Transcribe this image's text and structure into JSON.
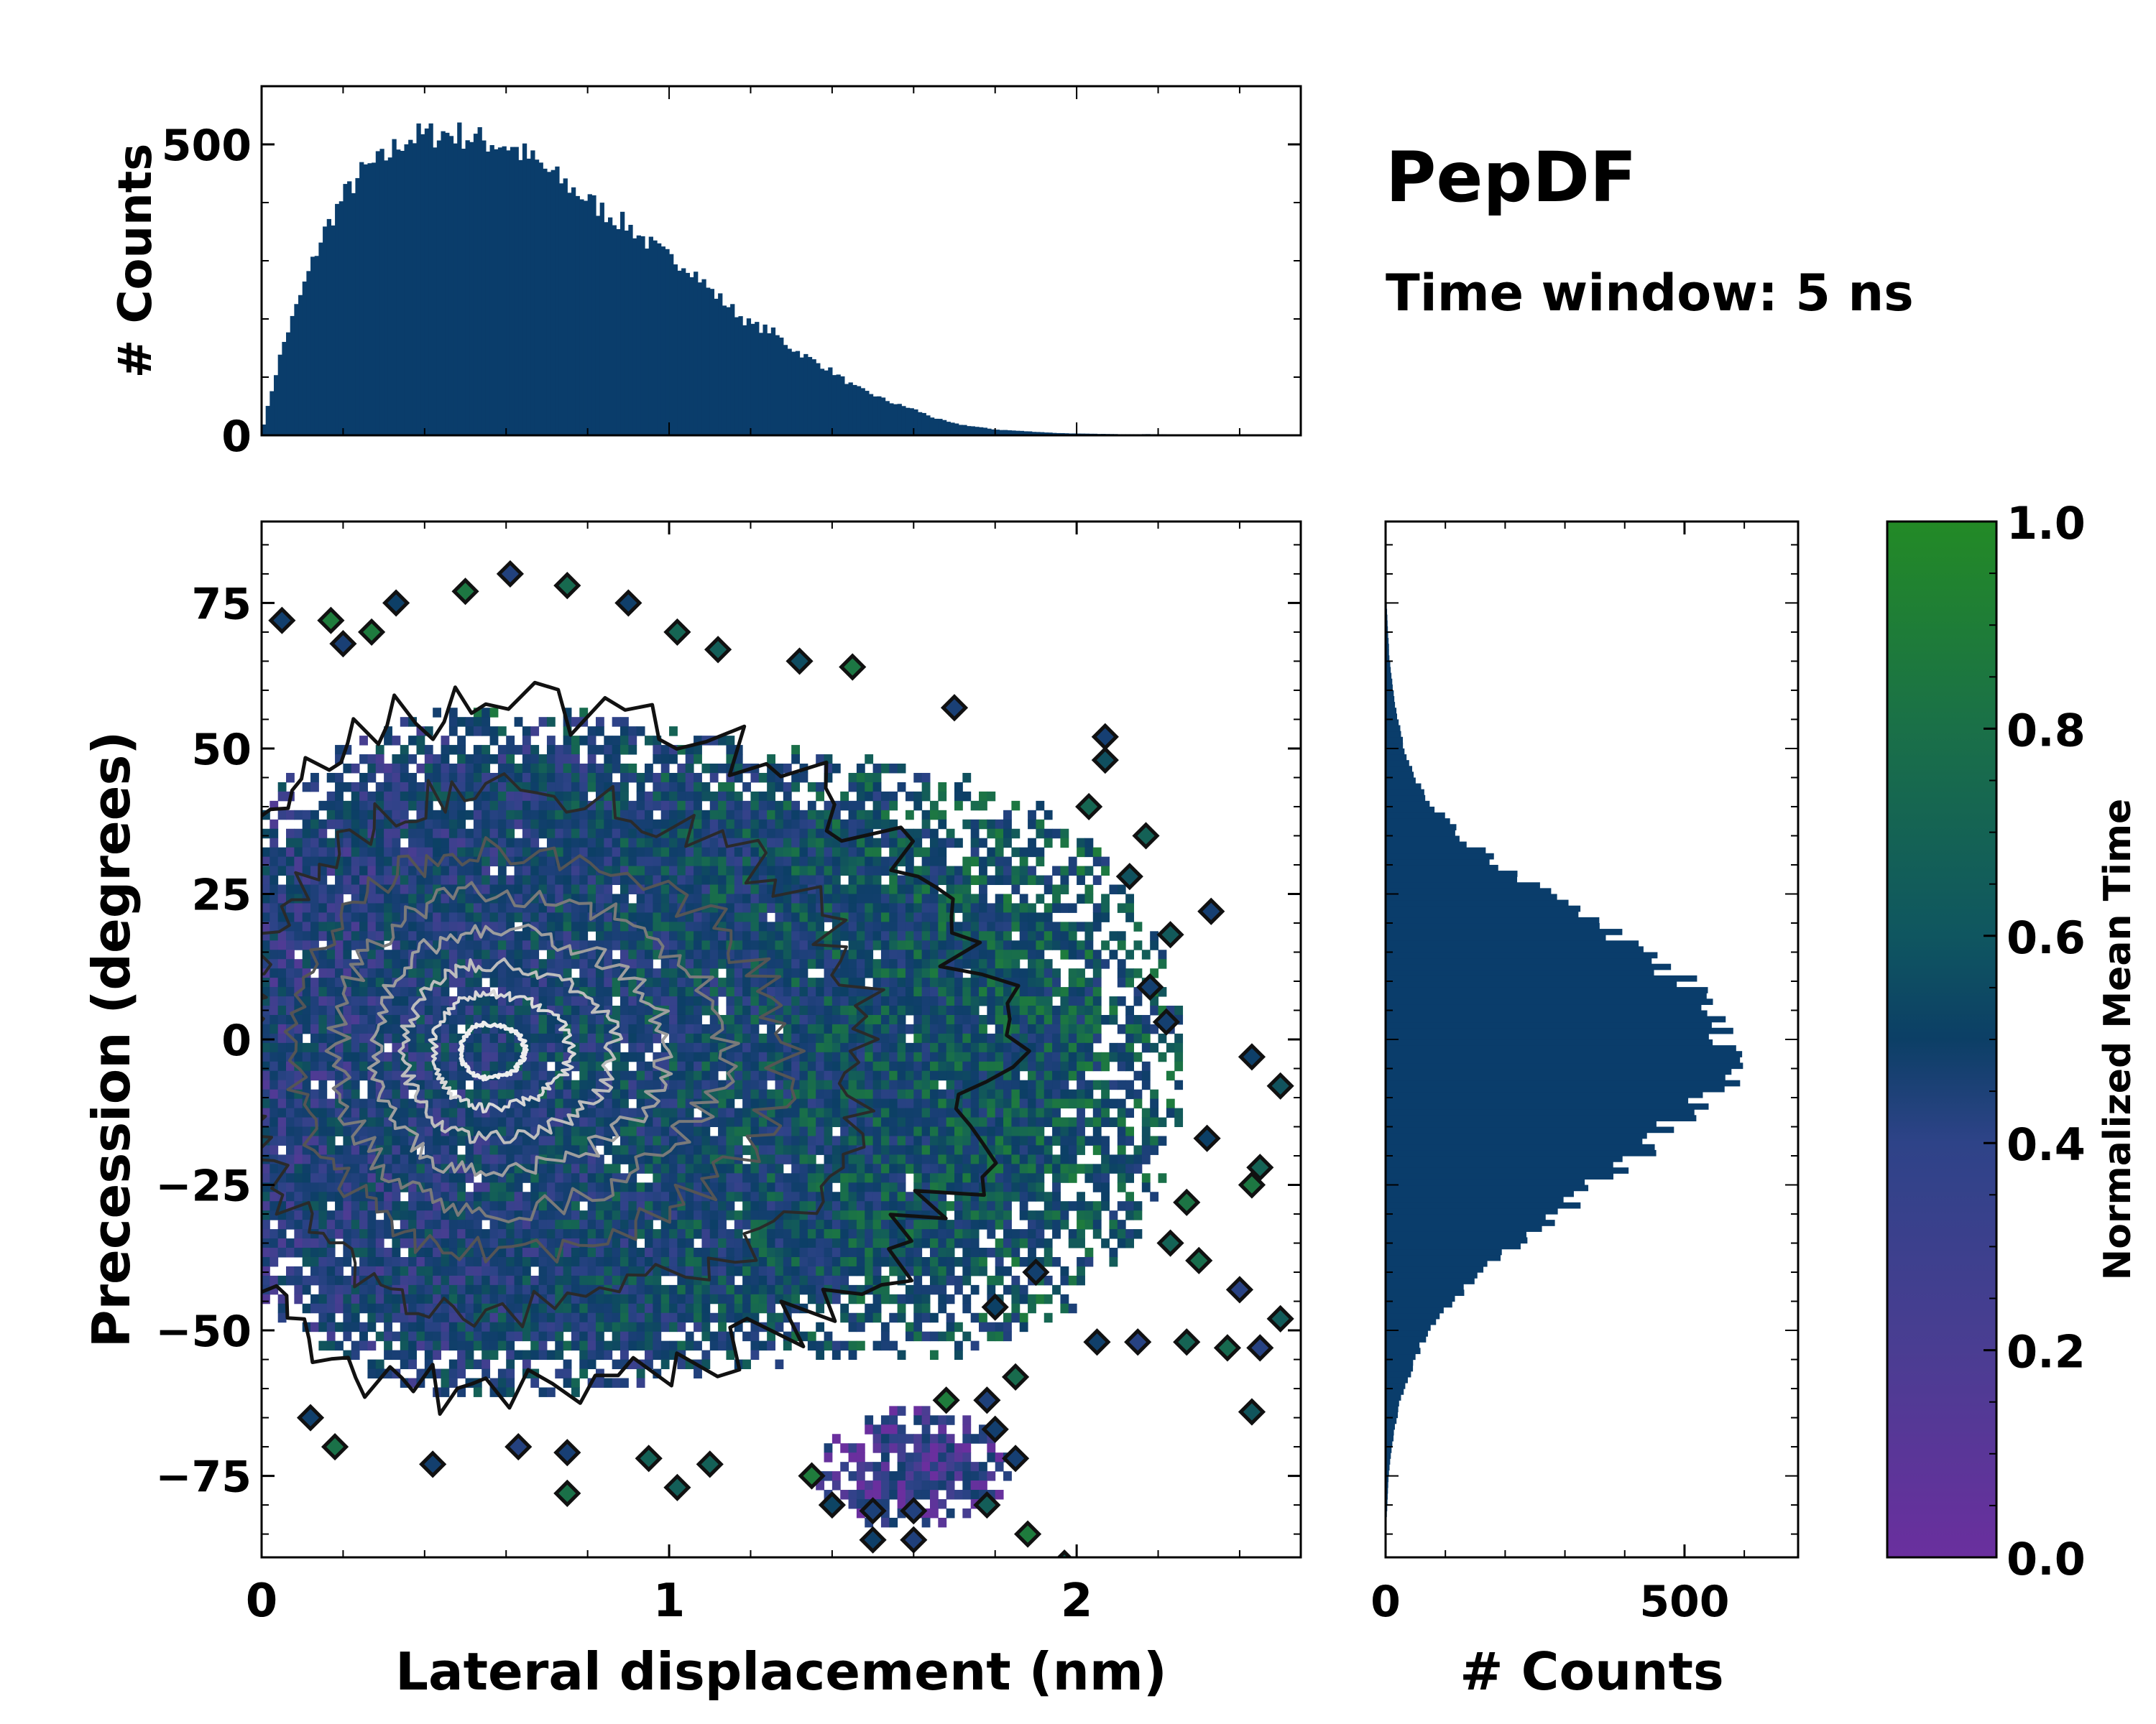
{
  "figure": {
    "title": "PepDF",
    "subtitle": "Time window: 5 ns"
  },
  "colors": {
    "bar": "#0a3d6b",
    "contour_outer": "#111111",
    "contour_inner": "#d8d8d8",
    "cmap": [
      "#6a2f9e",
      "#4a3d92",
      "#2e4388",
      "#173f73",
      "#0c3f66",
      "#146256",
      "#1e7a3f",
      "#238a26"
    ]
  },
  "chart_data": [
    {
      "id": "main",
      "type": "heatmap",
      "title": "",
      "xlabel": "Lateral displacement (nm)",
      "ylabel": "Precession (degrees)",
      "xlim": [
        0,
        2.55
      ],
      "ylim": [
        -89,
        89
      ],
      "xticks": [
        0,
        1,
        2
      ],
      "xtick_labels": [
        "0",
        "1",
        "2"
      ],
      "yticks": [
        -75,
        -50,
        -25,
        0,
        25,
        50,
        75
      ],
      "ytick_labels": [
        "−75",
        "−50",
        "−25",
        "0",
        "25",
        "50",
        "75"
      ],
      "density": {
        "center_x": 0.55,
        "center_y": -2,
        "sigma_x": 0.36,
        "sigma_y": 23,
        "mean_time_trend": "increases with lateral displacement; lower (purple) at large negative precession"
      },
      "contour_levels": [
        "outer",
        "mid",
        "inner",
        "peak"
      ]
    },
    {
      "id": "top_histogram",
      "type": "bar",
      "orientation": "vertical",
      "xlabel": "",
      "ylabel": "# Counts",
      "xlim": [
        0,
        2.55
      ],
      "ylim": [
        0,
        600
      ],
      "yticks": [
        0,
        500
      ],
      "ytick_labels": [
        "0",
        "500"
      ],
      "bin_width": 0.01,
      "x": [
        0.0,
        0.05,
        0.1,
        0.15,
        0.2,
        0.25,
        0.3,
        0.35,
        0.4,
        0.45,
        0.5,
        0.55,
        0.6,
        0.65,
        0.7,
        0.75,
        0.8,
        0.85,
        0.9,
        0.95,
        1.0,
        1.05,
        1.1,
        1.15,
        1.2,
        1.25,
        1.3,
        1.35,
        1.4,
        1.45,
        1.5,
        1.55,
        1.6,
        1.65,
        1.7,
        1.75,
        1.8,
        1.85,
        1.9,
        1.95,
        2.0,
        2.1,
        2.2,
        2.3,
        2.4,
        2.5,
        2.55
      ],
      "values": [
        5,
        150,
        250,
        345,
        410,
        455,
        475,
        510,
        515,
        520,
        515,
        505,
        500,
        480,
        455,
        430,
        405,
        380,
        360,
        330,
        305,
        290,
        250,
        220,
        190,
        180,
        150,
        130,
        110,
        85,
        70,
        55,
        45,
        30,
        20,
        15,
        10,
        8,
        6,
        4,
        3,
        2,
        2,
        1,
        1,
        0,
        0
      ]
    },
    {
      "id": "right_histogram",
      "type": "bar",
      "orientation": "horizontal",
      "xlabel": "# Counts",
      "ylabel": "",
      "xlim": [
        0,
        690
      ],
      "ylim": [
        -89,
        89
      ],
      "xticks": [
        0,
        500
      ],
      "xtick_labels": [
        "0",
        "500"
      ],
      "bin_width": 1,
      "y": [
        -89,
        -85,
        -80,
        -75,
        -70,
        -65,
        -60,
        -55,
        -50,
        -45,
        -40,
        -35,
        -30,
        -25,
        -20,
        -15,
        -10,
        -5,
        0,
        5,
        10,
        15,
        20,
        25,
        30,
        35,
        40,
        45,
        50,
        55,
        60,
        65,
        70,
        75,
        80,
        85,
        89
      ],
      "values": [
        0,
        0,
        3,
        5,
        10,
        18,
        30,
        50,
        70,
        110,
        160,
        220,
        290,
        350,
        420,
        480,
        540,
        575,
        580,
        555,
        500,
        430,
        350,
        270,
        190,
        125,
        80,
        50,
        32,
        20,
        12,
        7,
        4,
        2,
        1,
        0,
        0
      ]
    },
    {
      "id": "colorbar",
      "type": "colorbar",
      "label": "Normalized Mean Time",
      "range": [
        0,
        1
      ],
      "ticks": [
        0.0,
        0.2,
        0.4,
        0.6,
        0.8,
        1.0
      ],
      "tick_labels": [
        "0.0",
        "0.2",
        "0.4",
        "0.6",
        "0.8",
        "1.0"
      ]
    }
  ]
}
